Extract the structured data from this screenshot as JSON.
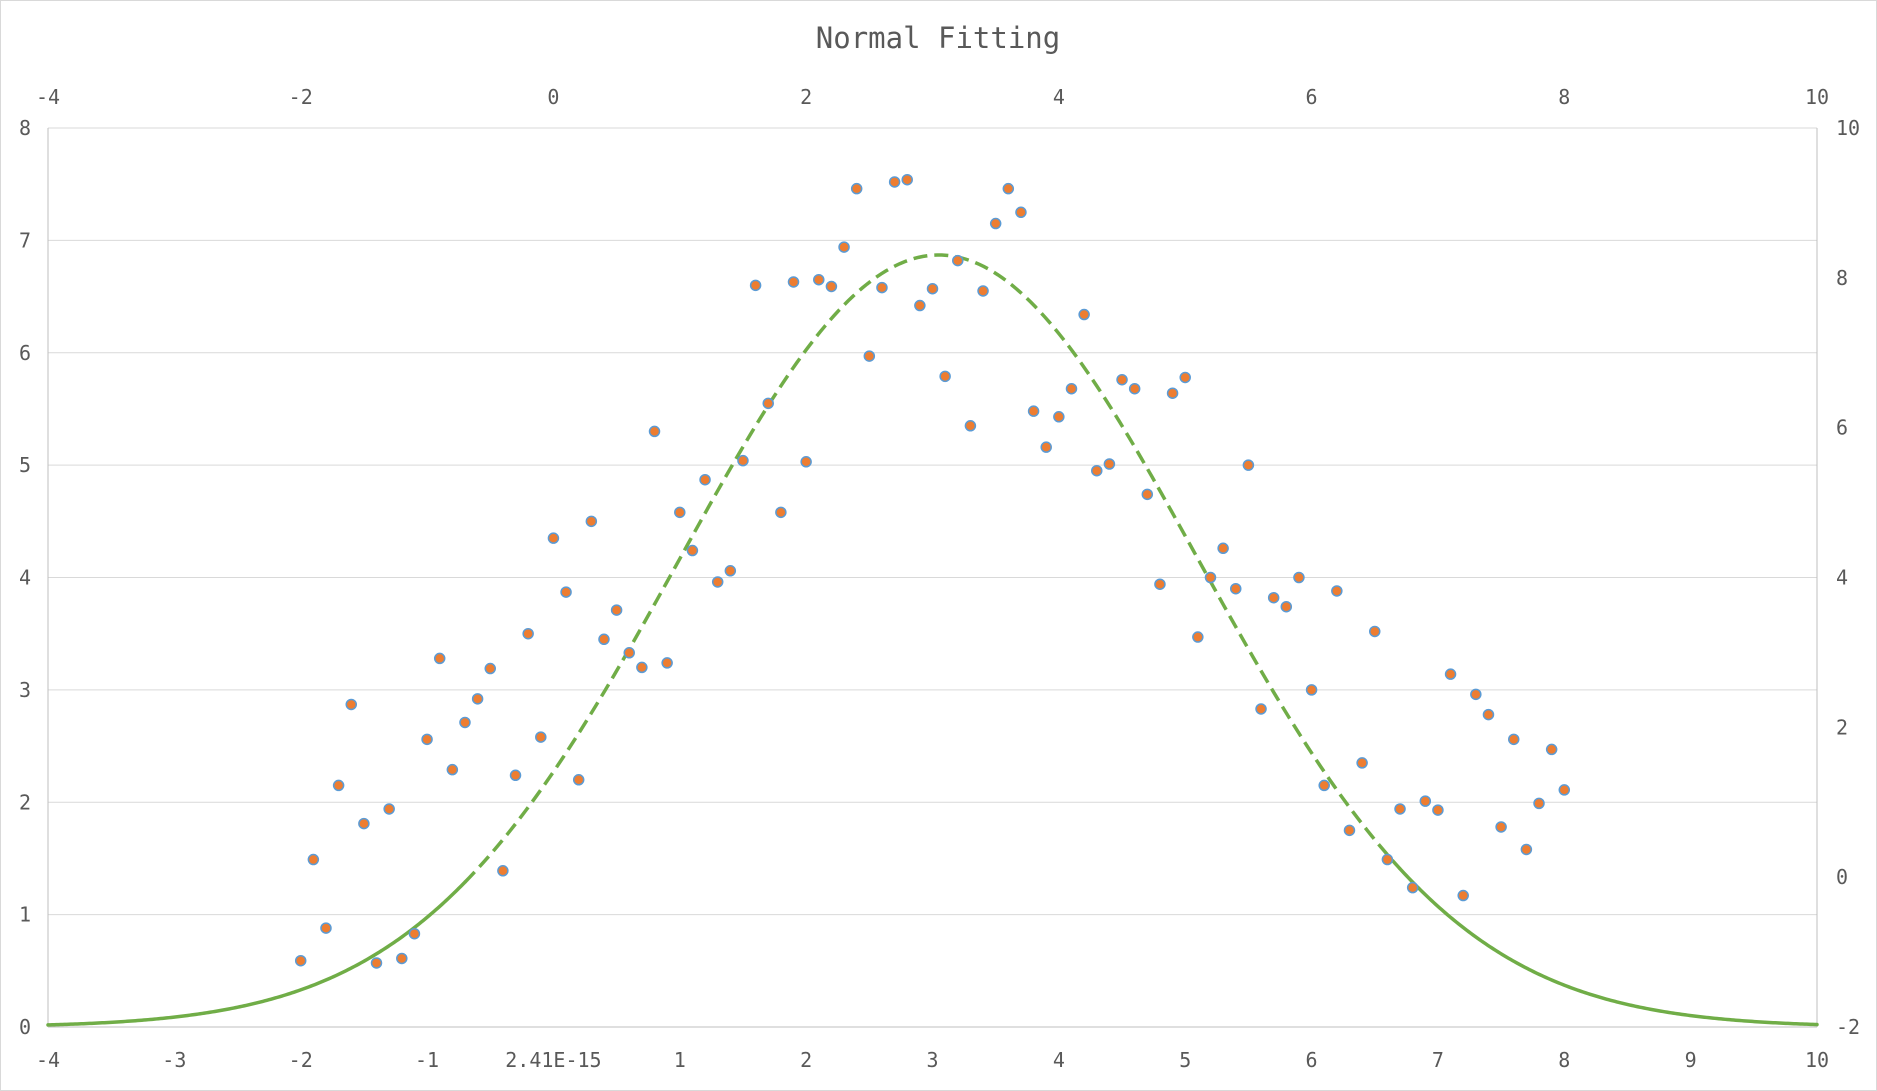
{
  "chart_data": {
    "type": "scatter",
    "title": "Normal Fitting",
    "xlabel": "",
    "ylabel": "",
    "grid": "horizontal",
    "legend": "none",
    "colors": {
      "points_fill": "#ED7D31",
      "points_stroke": "#5B9BD5",
      "curve": "#70AD47",
      "grid": "#d9d9d9",
      "text": "#595959"
    },
    "axes": {
      "bottom": {
        "range": [
          -4,
          10
        ],
        "ticks": [
          "-4",
          "-3",
          "-2",
          "-1",
          "2.41E-15",
          "1",
          "2",
          "3",
          "4",
          "5",
          "6",
          "7",
          "8",
          "9",
          "10"
        ]
      },
      "top": {
        "range": [
          -4,
          10
        ],
        "ticks": [
          "-4",
          "-2",
          "0",
          "2",
          "4",
          "6",
          "8",
          "10"
        ]
      },
      "left": {
        "range": [
          0,
          8
        ],
        "ticks": [
          "0",
          "1",
          "2",
          "3",
          "4",
          "5",
          "6",
          "7",
          "8"
        ]
      },
      "right": {
        "range": [
          -2,
          10
        ],
        "ticks": [
          "-2",
          "0",
          "2",
          "4",
          "6",
          "8",
          "10"
        ]
      }
    },
    "series": [
      {
        "type": "scatter",
        "x": [
          -2.0,
          -1.9,
          -1.8,
          -1.7,
          -1.6,
          -1.5,
          -1.4,
          -1.3,
          -1.2,
          -1.1,
          -1.0,
          -0.9,
          -0.8,
          -0.7,
          -0.6,
          -0.5,
          -0.4,
          -0.3,
          -0.2,
          -0.1,
          0.0,
          0.1,
          0.2,
          0.3,
          0.4,
          0.5,
          0.6,
          0.7,
          0.8,
          0.9,
          1.0,
          1.1,
          1.2,
          1.3,
          1.4,
          1.5,
          1.6,
          1.7,
          1.8,
          1.9,
          2.0,
          2.1,
          2.2,
          2.3,
          2.4,
          2.5,
          2.6,
          2.7,
          2.8,
          2.9,
          3.0,
          3.1,
          3.2,
          3.3,
          3.4,
          3.5,
          3.6,
          3.7,
          3.8,
          3.9,
          4.0,
          4.1,
          4.2,
          4.3,
          4.4,
          4.5,
          4.6,
          4.7,
          4.8,
          4.9,
          5.0,
          5.1,
          5.2,
          5.3,
          5.4,
          5.5,
          5.6,
          5.7,
          5.8,
          5.9,
          6.0,
          6.1,
          6.2,
          6.3,
          6.4,
          6.5,
          6.6,
          6.7,
          6.8,
          6.9,
          7.0,
          7.1,
          7.2,
          7.3,
          7.4,
          7.5,
          7.6,
          7.7,
          7.8,
          7.9,
          8.0
        ],
        "y": [
          0.59,
          1.49,
          0.88,
          2.15,
          2.87,
          1.81,
          0.57,
          1.94,
          0.61,
          0.83,
          2.56,
          3.28,
          2.29,
          2.71,
          2.92,
          3.19,
          1.39,
          2.24,
          3.5,
          2.58,
          4.35,
          3.87,
          2.2,
          4.5,
          3.45,
          3.71,
          3.33,
          3.2,
          5.3,
          3.24,
          4.58,
          4.24,
          4.87,
          3.96,
          4.06,
          5.04,
          6.6,
          5.55,
          4.58,
          6.63,
          5.03,
          6.65,
          6.59,
          6.94,
          7.46,
          5.97,
          6.58,
          7.52,
          7.54,
          6.42,
          6.57,
          5.79,
          6.82,
          5.35,
          6.55,
          7.15,
          7.46,
          7.25,
          5.48,
          5.16,
          5.43,
          5.68,
          6.34,
          4.95,
          5.01,
          5.76,
          5.68,
          4.74,
          3.94,
          5.64,
          5.78,
          3.47,
          4.0,
          4.26,
          3.9,
          5.0,
          2.83,
          3.82,
          3.74,
          4.0,
          3.0,
          2.15,
          3.88,
          1.75,
          2.35,
          3.52,
          1.49,
          1.94,
          1.24,
          2.01,
          1.93,
          3.14,
          1.17,
          2.96,
          2.78,
          1.78,
          2.56,
          1.58,
          1.99,
          2.47,
          2.11
        ]
      },
      {
        "type": "line",
        "function": "normal",
        "mean": 3.05,
        "stdev": 2.05,
        "peak": 6.87,
        "domain": [
          -4,
          10
        ],
        "style": "solid at tails, dashed in middle"
      }
    ]
  }
}
